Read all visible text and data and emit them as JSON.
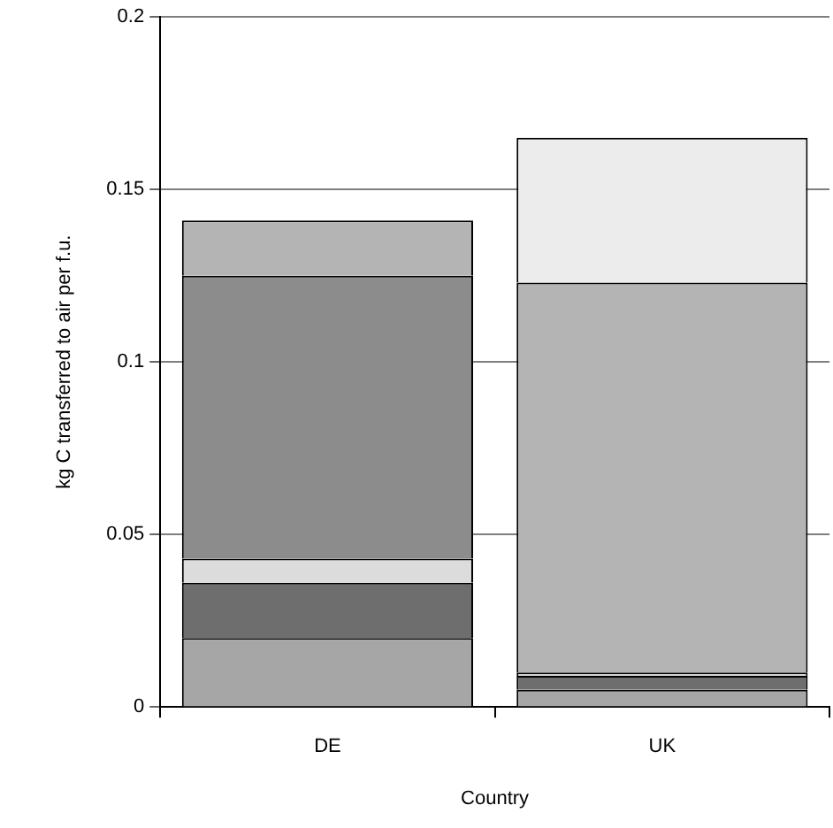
{
  "chart_data": {
    "type": "bar",
    "stacked": true,
    "xlabel": "Country",
    "ylabel": "kg C transferred to air per f.u.",
    "categories": [
      "DE",
      "UK"
    ],
    "series": [
      {
        "color": "#a6a6a6",
        "values": [
          0.02,
          0.005
        ]
      },
      {
        "color": "#6e6e6e",
        "values": [
          0.016,
          0.004
        ]
      },
      {
        "color": "#dcdcdc",
        "values": [
          0.007,
          0.001
        ]
      },
      {
        "color": "#8c8c8c",
        "values": [
          0.082,
          0
        ]
      },
      {
        "color": "#b4b4b4",
        "values": [
          0.016,
          0.113
        ]
      },
      {
        "color": "#ececec",
        "values": [
          0,
          0.042
        ]
      }
    ],
    "ylim": [
      0,
      0.2
    ],
    "yticks": [
      0,
      0.05,
      0.1,
      0.15,
      0.2
    ],
    "grid": "y",
    "legend": false
  }
}
